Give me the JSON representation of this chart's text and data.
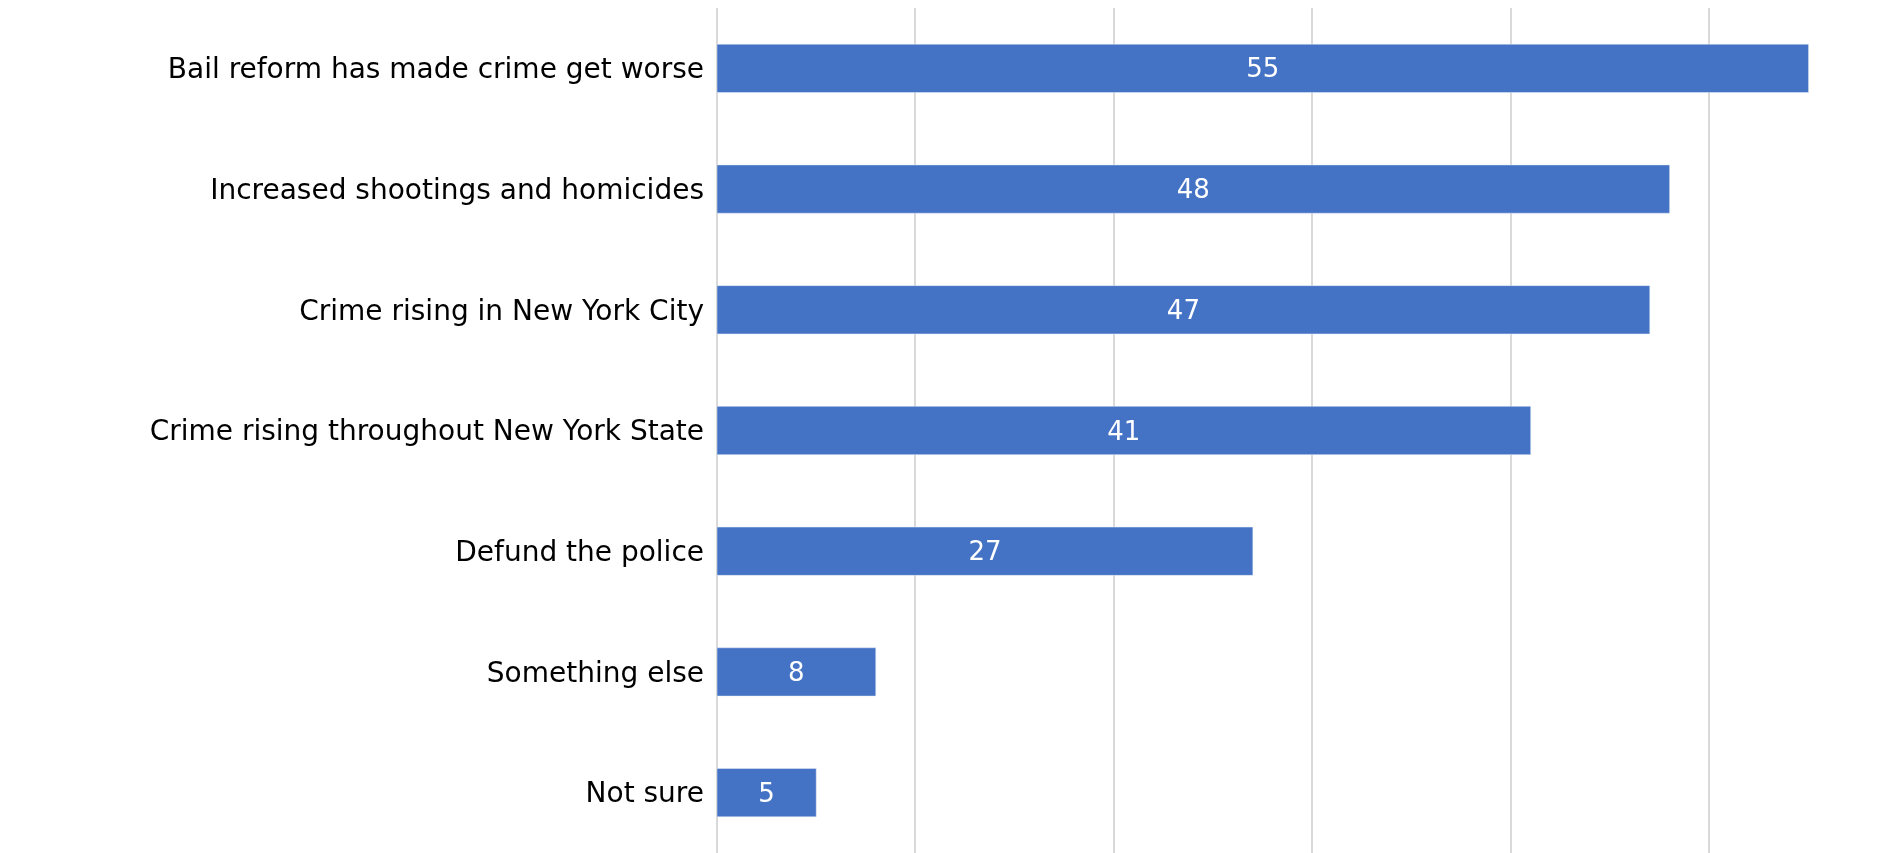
{
  "chart_data": {
    "type": "bar",
    "orientation": "horizontal",
    "categories": [
      "Bail reform has made crime get worse",
      "Increased shootings and homicides",
      "Crime rising in New York City",
      "Crime rising throughout New York State",
      "Defund the police",
      "Something else",
      "Not sure"
    ],
    "values": [
      55,
      48,
      47,
      41,
      27,
      8,
      5
    ],
    "color": "#4472c4",
    "grid": "x",
    "data_labels": true,
    "tick_labels": "y"
  }
}
